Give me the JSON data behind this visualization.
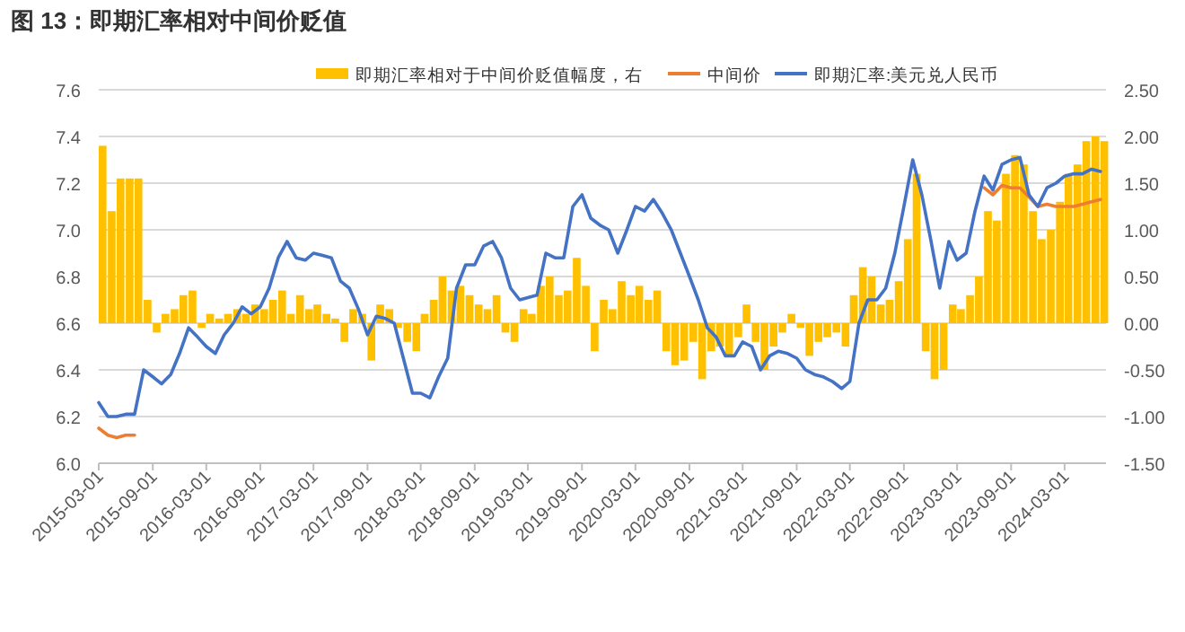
{
  "chart_data": {
    "type": "line",
    "title": "图 13：即期汇率相对中间价贬值",
    "x": [
      "2015-03",
      "2015-04",
      "2015-05",
      "2015-06",
      "2015-07",
      "2015-08",
      "2015-09",
      "2015-10",
      "2015-11",
      "2015-12",
      "2016-01",
      "2016-02",
      "2016-03",
      "2016-04",
      "2016-05",
      "2016-06",
      "2016-07",
      "2016-08",
      "2016-09",
      "2016-10",
      "2016-11",
      "2016-12",
      "2017-01",
      "2017-02",
      "2017-03",
      "2017-04",
      "2017-05",
      "2017-06",
      "2017-07",
      "2017-08",
      "2017-09",
      "2017-10",
      "2017-11",
      "2017-12",
      "2018-01",
      "2018-02",
      "2018-03",
      "2018-04",
      "2018-05",
      "2018-06",
      "2018-07",
      "2018-08",
      "2018-09",
      "2018-10",
      "2018-11",
      "2018-12",
      "2019-01",
      "2019-02",
      "2019-03",
      "2019-04",
      "2019-05",
      "2019-06",
      "2019-07",
      "2019-08",
      "2019-09",
      "2019-10",
      "2019-11",
      "2019-12",
      "2020-01",
      "2020-02",
      "2020-03",
      "2020-04",
      "2020-05",
      "2020-06",
      "2020-07",
      "2020-08",
      "2020-09",
      "2020-10",
      "2020-11",
      "2020-12",
      "2021-01",
      "2021-02",
      "2021-03",
      "2021-04",
      "2021-05",
      "2021-06",
      "2021-07",
      "2021-08",
      "2021-09",
      "2021-10",
      "2021-11",
      "2021-12",
      "2022-01",
      "2022-02",
      "2022-03",
      "2022-04",
      "2022-05",
      "2022-06",
      "2022-07",
      "2022-08",
      "2022-09",
      "2022-10",
      "2022-11",
      "2022-12",
      "2023-01",
      "2023-02",
      "2023-03",
      "2023-04",
      "2023-05",
      "2023-06",
      "2023-07",
      "2023-08",
      "2023-09",
      "2023-10",
      "2023-11",
      "2023-12",
      "2024-01",
      "2024-02",
      "2024-03",
      "2024-04",
      "2024-05",
      "2024-06",
      "2024-07"
    ],
    "series": [
      {
        "name": "即期汇率相对于中间价贬值幅度，右",
        "type": "bar",
        "axis": "y2",
        "color": "#ffc000",
        "values": [
          1.9,
          1.2,
          1.55,
          1.55,
          1.55,
          0.25,
          -0.1,
          0.1,
          0.15,
          0.3,
          0.35,
          -0.05,
          0.1,
          0.05,
          0.1,
          0.15,
          0.1,
          0.2,
          0.15,
          0.25,
          0.35,
          0.1,
          0.3,
          0.15,
          0.2,
          0.1,
          0.05,
          -0.2,
          0.15,
          0.1,
          -0.4,
          0.2,
          0.15,
          -0.05,
          -0.2,
          -0.3,
          0.1,
          0.25,
          0.5,
          0.35,
          0.4,
          0.3,
          0.2,
          0.15,
          0.3,
          -0.1,
          -0.2,
          0.15,
          0.1,
          0.4,
          0.5,
          0.3,
          0.35,
          0.7,
          0.4,
          -0.3,
          0.25,
          0.15,
          0.45,
          0.3,
          0.4,
          0.25,
          0.35,
          -0.3,
          -0.45,
          -0.4,
          -0.2,
          -0.6,
          -0.3,
          -0.25,
          -0.35,
          -0.15,
          0.2,
          -0.2,
          -0.5,
          -0.25,
          -0.1,
          0.1,
          -0.05,
          -0.35,
          -0.2,
          -0.15,
          -0.1,
          -0.25,
          0.3,
          0.6,
          0.5,
          0.2,
          0.25,
          0.45,
          0.9,
          1.6,
          -0.3,
          -0.6,
          -0.5,
          0.2,
          0.15,
          0.3,
          0.5,
          1.2,
          1.1,
          1.6,
          1.8,
          1.7,
          1.2,
          0.9,
          1.0,
          1.3,
          1.6,
          1.7,
          1.95,
          2.0,
          1.95
        ]
      },
      {
        "name": "中间价",
        "color": "#ed7d31",
        "values": [
          6.15,
          6.12,
          6.11,
          6.12,
          6.12,
          null,
          null,
          null,
          null,
          null,
          null,
          null,
          null,
          null,
          null,
          null,
          null,
          null,
          null,
          null,
          null,
          null,
          null,
          null,
          null,
          null,
          null,
          null,
          null,
          null,
          null,
          null,
          null,
          null,
          null,
          null,
          null,
          null,
          null,
          null,
          null,
          null,
          null,
          null,
          null,
          null,
          null,
          null,
          null,
          null,
          null,
          null,
          null,
          null,
          null,
          null,
          null,
          null,
          null,
          null,
          null,
          null,
          null,
          null,
          null,
          null,
          null,
          null,
          null,
          null,
          null,
          null,
          null,
          null,
          null,
          null,
          null,
          null,
          null,
          null,
          null,
          null,
          null,
          null,
          null,
          null,
          null,
          null,
          null,
          null,
          null,
          null,
          null,
          null,
          null,
          null,
          null,
          null,
          null,
          7.18,
          7.15,
          7.19,
          7.18,
          7.18,
          7.14,
          7.1,
          7.11,
          7.1,
          7.1,
          7.1,
          7.11,
          7.12,
          7.13
        ]
      },
      {
        "name": "即期汇率:美元兑人民币",
        "color": "#4472c4",
        "values": [
          6.26,
          6.2,
          6.2,
          6.21,
          6.21,
          6.4,
          6.37,
          6.34,
          6.38,
          6.47,
          6.58,
          6.54,
          6.5,
          6.47,
          6.55,
          6.6,
          6.67,
          6.64,
          6.67,
          6.75,
          6.88,
          6.95,
          6.88,
          6.87,
          6.9,
          6.89,
          6.88,
          6.78,
          6.75,
          6.66,
          6.55,
          6.63,
          6.62,
          6.6,
          6.45,
          6.3,
          6.3,
          6.28,
          6.37,
          6.45,
          6.75,
          6.85,
          6.85,
          6.93,
          6.95,
          6.88,
          6.75,
          6.7,
          6.71,
          6.72,
          6.9,
          6.88,
          6.88,
          7.1,
          7.15,
          7.05,
          7.02,
          7.0,
          6.9,
          7.0,
          7.1,
          7.08,
          7.13,
          7.07,
          7.0,
          6.9,
          6.8,
          6.7,
          6.58,
          6.54,
          6.46,
          6.46,
          6.52,
          6.5,
          6.4,
          6.46,
          6.48,
          6.47,
          6.45,
          6.4,
          6.38,
          6.37,
          6.35,
          6.32,
          6.35,
          6.6,
          6.7,
          6.7,
          6.75,
          6.9,
          7.1,
          7.3,
          7.15,
          6.96,
          6.75,
          6.95,
          6.87,
          6.9,
          7.08,
          7.23,
          7.17,
          7.28,
          7.3,
          7.31,
          7.15,
          7.1,
          7.18,
          7.2,
          7.23,
          7.24,
          7.24,
          7.26,
          7.25
        ]
      }
    ],
    "xlim": [
      "2015-03-01",
      "2024-07-20"
    ],
    "xticks": [
      {
        "value": "2015-03-01",
        "label": "2015-03-01"
      },
      {
        "value": "2015-09-01",
        "label": "2015-09-01"
      },
      {
        "value": "2016-03-01",
        "label": "2016-03-01"
      },
      {
        "value": "2016-09-01",
        "label": "2016-09-01"
      },
      {
        "value": "2017-03-01",
        "label": "2017-03-01"
      },
      {
        "value": "2017-09-01",
        "label": "2017-09-01"
      },
      {
        "value": "2018-03-01",
        "label": "2018-03-01"
      },
      {
        "value": "2018-09-01",
        "label": "2018-09-01"
      },
      {
        "value": "2019-03-01",
        "label": "2019-03-01"
      },
      {
        "value": "2019-09-01",
        "label": "2019-09-01"
      },
      {
        "value": "2020-03-01",
        "label": "2020-03-01"
      },
      {
        "value": "2020-09-01",
        "label": "2020-09-01"
      },
      {
        "value": "2021-03-01",
        "label": "2021-03-01"
      },
      {
        "value": "2021-09-01",
        "label": "2021-09-01"
      },
      {
        "value": "2022-03-01",
        "label": "2022-03-01"
      },
      {
        "value": "2022-09-01",
        "label": "2022-09-01"
      },
      {
        "value": "2023-03-01",
        "label": "2023-03-01"
      },
      {
        "value": "2023-09-01",
        "label": "2023-09-01"
      },
      {
        "value": "2024-03-01",
        "label": "2024-03-01"
      }
    ],
    "ylim": [
      6.0,
      7.6
    ],
    "yticks": [
      {
        "value": 6.0,
        "label": "6.0"
      },
      6.2,
      6.4,
      6.6,
      6.8,
      {
        "value": 7.0,
        "label": "7.0"
      },
      7.2,
      7.4,
      7.6
    ],
    "y2lim": [
      -1.5,
      2.5
    ],
    "y2ticks": [
      {
        "value": -1.5,
        "label": "-1.50"
      },
      {
        "value": -1.0,
        "label": "-1.00"
      },
      {
        "value": -0.5,
        "label": "-0.50"
      },
      {
        "value": 0,
        "label": "0.00"
      },
      {
        "value": 0.5,
        "label": "0.50"
      },
      {
        "value": 1.0,
        "label": "1.00"
      },
      {
        "value": 1.5,
        "label": "1.50"
      },
      {
        "value": 2.0,
        "label": "2.00"
      },
      {
        "value": 2.5,
        "label": "2.50"
      }
    ],
    "grid": "y",
    "legend": "top",
    "marker": "none",
    "line_style": "solid"
  }
}
